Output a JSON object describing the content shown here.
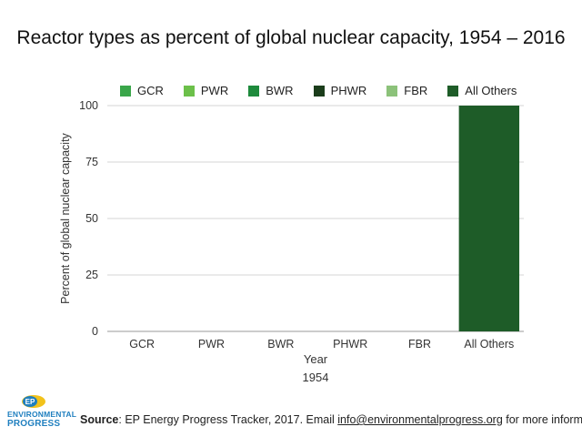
{
  "title": "Reactor types as percent of global nuclear capacity, 1954 – 2016",
  "footer": {
    "source_label": "Source",
    "source_text": ": EP Energy Progress Tracker, 2017. Email ",
    "email": "info@environmentalprogress.org",
    "tail": " for more information."
  },
  "logo": {
    "line1": "ENVIRONMENTAL",
    "line2": "PROGRESS",
    "badge": "EP"
  },
  "colors": {
    "GCR": "#3aa64a",
    "PWR": "#6cc04a",
    "BWR": "#1e8a3c",
    "PHWR": "#1b3d1b",
    "FBR": "#8cc27a",
    "All Others": "#1e5c28",
    "logo_blue": "#1f7fbf",
    "logo_yellow": "#f2c21b"
  },
  "chart_data": {
    "type": "bar",
    "title": "Reactor types as percent of global nuclear capacity, 1954 – 2016",
    "xlabel": "Year",
    "ylabel": "Percent of global nuclear capacity",
    "year_label": "1954",
    "categories": [
      "GCR",
      "PWR",
      "BWR",
      "PHWR",
      "FBR",
      "All Others"
    ],
    "values": [
      0,
      0,
      0,
      0,
      0,
      100
    ],
    "yticks": [
      "0",
      "25",
      "50",
      "75",
      "100"
    ],
    "ylim": [
      0,
      100
    ],
    "grid": true,
    "legend": [
      "GCR",
      "PWR",
      "BWR",
      "PHWR",
      "FBR",
      "All Others"
    ],
    "legend_position": "top"
  }
}
